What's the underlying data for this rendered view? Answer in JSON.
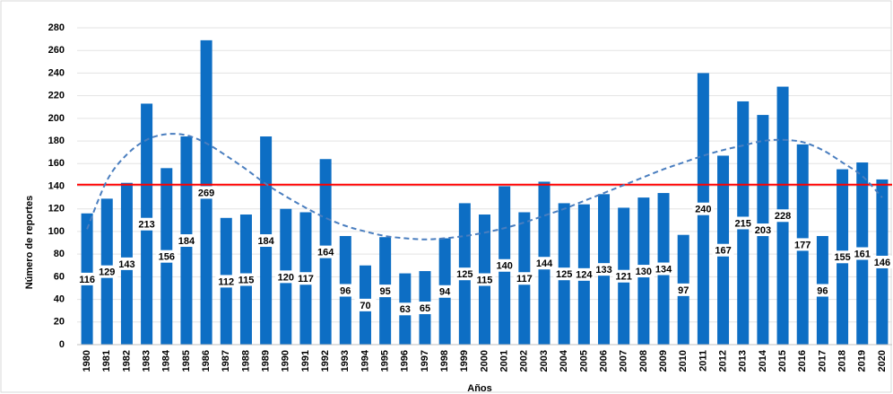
{
  "chart_data": {
    "type": "bar",
    "x_label": "Años",
    "y_label": "Número de reportes",
    "categories": [
      "1980",
      "1981",
      "1982",
      "1983",
      "1984",
      "1985",
      "1986",
      "1987",
      "1988",
      "1989",
      "1990",
      "1991",
      "1992",
      "1993",
      "1994",
      "1995",
      "1996",
      "1997",
      "1998",
      "1999",
      "2000",
      "2001",
      "2002",
      "2003",
      "2004",
      "2005",
      "2006",
      "2007",
      "2008",
      "2009",
      "2010",
      "2011",
      "2012",
      "2013",
      "2014",
      "2015",
      "2016",
      "2017",
      "2018",
      "2019",
      "2020"
    ],
    "values": [
      116,
      129,
      143,
      213,
      156,
      184,
      269,
      112,
      115,
      184,
      120,
      117,
      164,
      96,
      70,
      95,
      63,
      65,
      94,
      125,
      115,
      140,
      117,
      144,
      125,
      124,
      133,
      121,
      130,
      134,
      97,
      240,
      167,
      215,
      203,
      228,
      177,
      96,
      155,
      161,
      146
    ],
    "color": "#0d6ec4",
    "mean_line": {
      "value": 141.4,
      "color": "#ff0000"
    },
    "trend": {
      "values": [
        102,
        145,
        168,
        181,
        186,
        185,
        178,
        167,
        155,
        142,
        131,
        121,
        112,
        105,
        100,
        96,
        94,
        93,
        94,
        96,
        99,
        103,
        108,
        114,
        120,
        127,
        134,
        141,
        148,
        155,
        161,
        167,
        172,
        176,
        180,
        181,
        179,
        172,
        161,
        149,
        130
      ],
      "color": "#4a7ebf",
      "dashed": true
    },
    "ylim": [
      0,
      280
    ],
    "yticks": [
      0,
      20,
      40,
      60,
      80,
      100,
      120,
      140,
      160,
      180,
      200,
      220,
      240,
      260,
      280
    ],
    "grid": true
  }
}
